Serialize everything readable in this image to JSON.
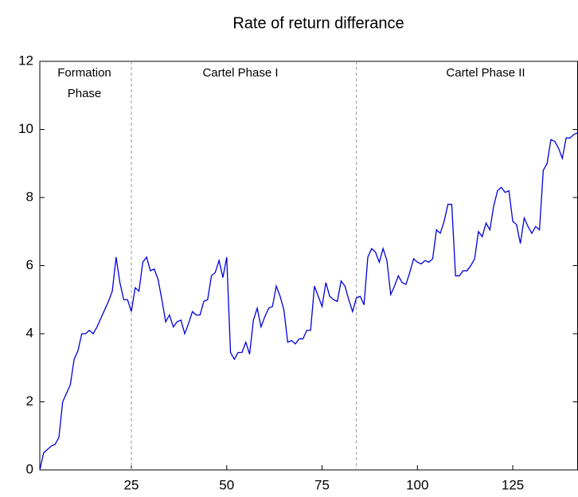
{
  "chart_data": {
    "type": "line",
    "title": "Rate of return differance",
    "annotations": [
      [
        "Formation",
        "Phase"
      ],
      [
        "Cartel Phase I"
      ],
      [
        "Cartel Phase II"
      ]
    ],
    "phase_lines": [
      25,
      84
    ],
    "series": [
      {
        "color": "#0000dd",
        "values": [
          0,
          0.5,
          0.6,
          0.7,
          0.75,
          0.95,
          2.0,
          2.25,
          2.5,
          3.25,
          3.5,
          4.0,
          4.0,
          4.1,
          4.0,
          4.2,
          4.45,
          4.7,
          4.95,
          5.25,
          6.25,
          5.5,
          5.0,
          5.0,
          4.65,
          5.35,
          5.25,
          6.1,
          6.25,
          5.85,
          5.9,
          5.6,
          5.0,
          4.35,
          4.55,
          4.2,
          4.35,
          4.4,
          4.0,
          4.3,
          4.65,
          4.55,
          4.55,
          4.95,
          5.0,
          5.7,
          5.8,
          6.15,
          5.65,
          6.25,
          3.45,
          3.25,
          3.45,
          3.45,
          3.75,
          3.4,
          4.4,
          4.75,
          4.2,
          4.5,
          4.75,
          4.8,
          5.4,
          5.1,
          4.7,
          3.75,
          3.8,
          3.7,
          3.85,
          3.85,
          4.1,
          4.1,
          5.4,
          5.1,
          4.8,
          5.5,
          5.1,
          5.0,
          4.95,
          5.55,
          5.4,
          5.0,
          4.65,
          5.05,
          5.1,
          4.85,
          6.25,
          6.5,
          6.4,
          6.1,
          6.5,
          6.15,
          5.15,
          5.4,
          5.7,
          5.5,
          5.45,
          5.8,
          6.2,
          6.1,
          6.05,
          6.15,
          6.1,
          6.2,
          7.05,
          6.95,
          7.3,
          7.8,
          7.8,
          5.7,
          5.7,
          5.85,
          5.85,
          6.0,
          6.2,
          7.0,
          6.85,
          7.25,
          7.05,
          7.75,
          8.2,
          8.3,
          8.15,
          8.2,
          7.3,
          7.2,
          6.65,
          7.4,
          7.15,
          6.95,
          7.15,
          7.05,
          8.8,
          9.0,
          9.7,
          9.65,
          9.45,
          9.15,
          9.75,
          9.75,
          9.85,
          9.9
        ]
      }
    ],
    "x": [
      1,
      2,
      3,
      4,
      5,
      6,
      7,
      8,
      9,
      10,
      11,
      12,
      13,
      14,
      15,
      16,
      17,
      18,
      19,
      20,
      21,
      22,
      23,
      24,
      25,
      26,
      27,
      28,
      29,
      30,
      31,
      32,
      33,
      34,
      35,
      36,
      37,
      38,
      39,
      40,
      41,
      42,
      43,
      44,
      45,
      46,
      47,
      48,
      49,
      50,
      51,
      52,
      53,
      54,
      55,
      56,
      57,
      58,
      59,
      60,
      61,
      62,
      63,
      64,
      65,
      66,
      67,
      68,
      69,
      70,
      71,
      72,
      73,
      74,
      75,
      76,
      77,
      78,
      79,
      80,
      81,
      82,
      83,
      84,
      85,
      86,
      87,
      88,
      89,
      90,
      91,
      92,
      93,
      94,
      95,
      96,
      97,
      98,
      99,
      100,
      101,
      102,
      103,
      104,
      105,
      106,
      107,
      108,
      109,
      110,
      111,
      112,
      113,
      114,
      115,
      116,
      117,
      118,
      119,
      120,
      121,
      122,
      123,
      124,
      125,
      126,
      127,
      128,
      129,
      130,
      131,
      132,
      133,
      134,
      135,
      136,
      137,
      138,
      139,
      140,
      141,
      142
    ],
    "xlim": [
      1,
      142
    ],
    "xticks": [
      25,
      50,
      75,
      100,
      125
    ],
    "ylim": [
      0,
      12
    ],
    "yticks": [
      0,
      2,
      4,
      6,
      8,
      10,
      12
    ]
  }
}
